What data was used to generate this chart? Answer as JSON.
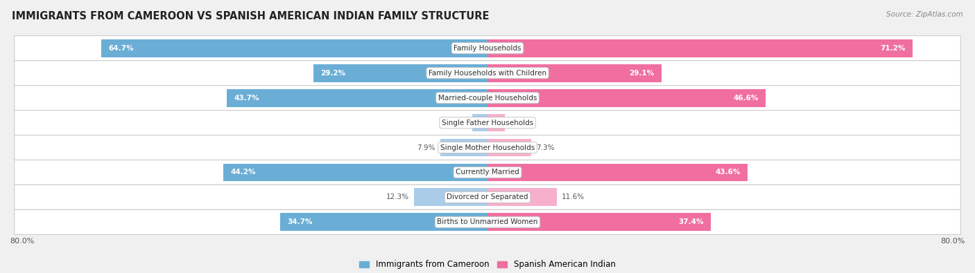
{
  "title": "IMMIGRANTS FROM CAMEROON VS SPANISH AMERICAN INDIAN FAMILY STRUCTURE",
  "source": "Source: ZipAtlas.com",
  "categories": [
    "Family Households",
    "Family Households with Children",
    "Married-couple Households",
    "Single Father Households",
    "Single Mother Households",
    "Currently Married",
    "Divorced or Separated",
    "Births to Unmarried Women"
  ],
  "left_values": [
    64.7,
    29.2,
    43.7,
    2.5,
    7.9,
    44.2,
    12.3,
    34.7
  ],
  "right_values": [
    71.2,
    29.1,
    46.6,
    2.9,
    7.3,
    43.6,
    11.6,
    37.4
  ],
  "max_val": 80.0,
  "left_color_strong": "#6aaed6",
  "left_color_weak": "#aacce8",
  "right_color_strong": "#f06fa0",
  "right_color_weak": "#f7b0cb",
  "strong_threshold": 20.0,
  "bg_color": "#f0f0f0",
  "row_bg_color": "#ffffff",
  "row_gap_color": "#e0e0e0",
  "left_legend": "Immigrants from Cameroon",
  "right_legend": "Spanish American Indian",
  "left_legend_color": "#6aaed6",
  "right_legend_color": "#f06fa0"
}
